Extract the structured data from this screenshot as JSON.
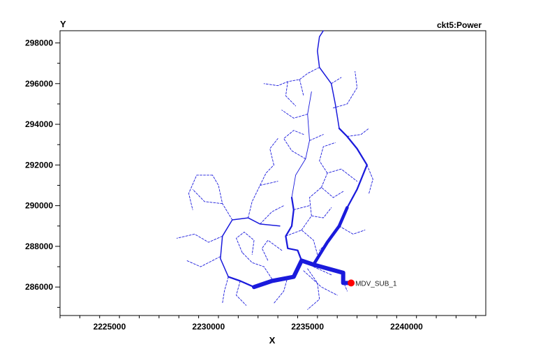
{
  "chart_data": {
    "type": "network-map",
    "title": "ckt5:Power",
    "xlabel": "X",
    "ylabel": "Y",
    "xlim": [
      2222500,
      2244000
    ],
    "ylim": [
      284600,
      298600
    ],
    "x_ticks": [
      {
        "value": 2225000,
        "label": "2225000"
      },
      {
        "value": 2230000,
        "label": "2230000"
      },
      {
        "value": 2235000,
        "label": "2235000"
      },
      {
        "value": 2240000,
        "label": "2240000"
      }
    ],
    "y_ticks": [
      {
        "value": 286000,
        "label": "286000"
      },
      {
        "value": 288000,
        "label": "288000"
      },
      {
        "value": 290000,
        "label": "290000"
      },
      {
        "value": 292000,
        "label": "292000"
      },
      {
        "value": 294000,
        "label": "294000"
      },
      {
        "value": 296000,
        "label": "296000"
      },
      {
        "value": 298000,
        "label": "298000"
      }
    ],
    "line_color": "#1a1adc",
    "substation": {
      "label": "MDV_SUB_1",
      "x": 2237200,
      "y": 286200,
      "color": "#ff0000"
    },
    "feeders": [
      {
        "weight": 8,
        "style": "solid",
        "points": [
          [
            2237200,
            286200
          ],
          [
            2236800,
            286200
          ],
          [
            2236800,
            286700
          ],
          [
            2235300,
            287100
          ],
          [
            2234700,
            287300
          ],
          [
            2234300,
            286500
          ],
          [
            2233200,
            286300
          ],
          [
            2232300,
            286000
          ]
        ]
      },
      {
        "weight": 6,
        "style": "solid",
        "points": [
          [
            2235300,
            287100
          ],
          [
            2236000,
            288200
          ],
          [
            2236600,
            289000
          ],
          [
            2237000,
            289900
          ]
        ]
      },
      {
        "weight": 3,
        "style": "solid",
        "points": [
          [
            2237000,
            289900
          ],
          [
            2237500,
            290800
          ],
          [
            2238000,
            292000
          ],
          [
            2237500,
            292800
          ],
          [
            2237000,
            293400
          ],
          [
            2236600,
            293800
          ]
        ]
      },
      {
        "weight": 2,
        "style": "solid",
        "points": [
          [
            2236600,
            293800
          ],
          [
            2236400,
            295000
          ],
          [
            2236200,
            296000
          ],
          [
            2235600,
            296800
          ],
          [
            2235500,
            297600
          ],
          [
            2235600,
            298300
          ],
          [
            2235800,
            298600
          ]
        ]
      },
      {
        "weight": 3,
        "style": "solid",
        "points": [
          [
            2234700,
            287300
          ],
          [
            2234500,
            287800
          ],
          [
            2234000,
            287900
          ],
          [
            2233900,
            288500
          ],
          [
            2234200,
            289000
          ],
          [
            2234300,
            289800
          ],
          [
            2234200,
            290400
          ]
        ]
      },
      {
        "weight": 3,
        "style": "solid",
        "points": [
          [
            2232300,
            286000
          ],
          [
            2231600,
            286300
          ],
          [
            2231000,
            286500
          ]
        ]
      },
      {
        "weight": 2,
        "style": "solid",
        "points": [
          [
            2231000,
            286500
          ],
          [
            2230600,
            287400
          ],
          [
            2230700,
            288500
          ],
          [
            2231200,
            289300
          ],
          [
            2232000,
            289400
          ],
          [
            2232600,
            289100
          ],
          [
            2233600,
            289000
          ]
        ]
      },
      {
        "weight": 1,
        "style": "solid",
        "points": [
          [
            2234200,
            290400
          ],
          [
            2234400,
            291500
          ],
          [
            2234900,
            292300
          ],
          [
            2235100,
            293200
          ],
          [
            2235000,
            294500
          ],
          [
            2235200,
            295600
          ]
        ]
      },
      {
        "weight": 1,
        "style": "dashed",
        "points": [
          [
            2234800,
            286800
          ],
          [
            2235700,
            286000
          ],
          [
            2236500,
            285600
          ]
        ]
      },
      {
        "weight": 1,
        "style": "dashed",
        "points": [
          [
            2235000,
            286900
          ],
          [
            2235500,
            286200
          ],
          [
            2235600,
            285400
          ],
          [
            2235000,
            284900
          ]
        ]
      },
      {
        "weight": 1,
        "style": "dashed",
        "points": [
          [
            2234000,
            286500
          ],
          [
            2233800,
            285800
          ],
          [
            2233300,
            285200
          ]
        ]
      },
      {
        "weight": 1,
        "style": "dashed",
        "points": [
          [
            2233200,
            286400
          ],
          [
            2232800,
            287000
          ],
          [
            2232200,
            287200
          ],
          [
            2231700,
            287700
          ]
        ]
      },
      {
        "weight": 1,
        "style": "dashed",
        "points": [
          [
            2231700,
            287700
          ],
          [
            2231400,
            288400
          ],
          [
            2231800,
            288700
          ],
          [
            2232300,
            288300
          ],
          [
            2232200,
            287600
          ]
        ]
      },
      {
        "weight": 1,
        "style": "dashed",
        "points": [
          [
            2230700,
            288500
          ],
          [
            2230000,
            288200
          ],
          [
            2229300,
            288600
          ],
          [
            2228400,
            288400
          ]
        ]
      },
      {
        "weight": 1,
        "style": "dashed",
        "points": [
          [
            2230600,
            287500
          ],
          [
            2229600,
            287000
          ],
          [
            2228900,
            287300
          ]
        ]
      },
      {
        "weight": 1,
        "style": "dashed",
        "points": [
          [
            2231000,
            286500
          ],
          [
            2230800,
            285800
          ],
          [
            2230700,
            285200
          ]
        ]
      },
      {
        "weight": 1,
        "style": "dashed",
        "points": [
          [
            2231600,
            286300
          ],
          [
            2231400,
            285600
          ],
          [
            2231900,
            285100
          ]
        ]
      },
      {
        "weight": 1,
        "style": "dashed",
        "points": [
          [
            2231200,
            289300
          ],
          [
            2230700,
            290100
          ],
          [
            2230500,
            291000
          ],
          [
            2230200,
            291500
          ]
        ]
      },
      {
        "weight": 1,
        "style": "dashed",
        "points": [
          [
            2230700,
            290100
          ],
          [
            2229800,
            290200
          ],
          [
            2229200,
            290800
          ]
        ]
      },
      {
        "weight": 1,
        "style": "dashed",
        "points": [
          [
            2230200,
            291500
          ],
          [
            2229400,
            291500
          ],
          [
            2229000,
            290600
          ],
          [
            2229200,
            289800
          ]
        ]
      },
      {
        "weight": 1,
        "style": "dashed",
        "points": [
          [
            2232000,
            289400
          ],
          [
            2232200,
            290200
          ],
          [
            2232600,
            291000
          ],
          [
            2232900,
            291600
          ],
          [
            2233300,
            292000
          ]
        ]
      },
      {
        "weight": 1,
        "style": "dashed",
        "points": [
          [
            2232600,
            291000
          ],
          [
            2233500,
            291200
          ]
        ]
      },
      {
        "weight": 1,
        "style": "dashed",
        "points": [
          [
            2232600,
            289100
          ],
          [
            2233200,
            289700
          ],
          [
            2233800,
            290000
          ]
        ]
      },
      {
        "weight": 1,
        "style": "dashed",
        "points": [
          [
            2233900,
            288500
          ],
          [
            2234700,
            288800
          ],
          [
            2235300,
            288300
          ],
          [
            2235500,
            287600
          ]
        ]
      },
      {
        "weight": 1,
        "style": "dashed",
        "points": [
          [
            2234700,
            288800
          ],
          [
            2235200,
            289500
          ],
          [
            2235800,
            289400
          ],
          [
            2236200,
            289900
          ]
        ]
      },
      {
        "weight": 1,
        "style": "dashed",
        "points": [
          [
            2235200,
            289500
          ],
          [
            2235100,
            290400
          ],
          [
            2235700,
            290900
          ],
          [
            2236300,
            290400
          ],
          [
            2236800,
            290700
          ]
        ]
      },
      {
        "weight": 1,
        "style": "dashed",
        "points": [
          [
            2236600,
            289000
          ],
          [
            2237300,
            288600
          ],
          [
            2237900,
            288800
          ]
        ]
      },
      {
        "weight": 1,
        "style": "dashed",
        "points": [
          [
            2236000,
            288200
          ],
          [
            2235600,
            287800
          ]
        ]
      },
      {
        "weight": 1,
        "style": "dashed",
        "points": [
          [
            2234300,
            289800
          ],
          [
            2235100,
            290000
          ]
        ]
      },
      {
        "weight": 1,
        "style": "dashed",
        "points": [
          [
            2235700,
            290900
          ],
          [
            2236000,
            291600
          ],
          [
            2236700,
            291800
          ],
          [
            2237500,
            291200
          ]
        ]
      },
      {
        "weight": 1,
        "style": "dashed",
        "points": [
          [
            2236000,
            291600
          ],
          [
            2235600,
            292200
          ],
          [
            2235800,
            292900
          ],
          [
            2236400,
            293100
          ]
        ]
      },
      {
        "weight": 1,
        "style": "dashed",
        "points": [
          [
            2234900,
            292300
          ],
          [
            2234200,
            292700
          ],
          [
            2233800,
            293300
          ],
          [
            2234300,
            293700
          ],
          [
            2234800,
            293500
          ]
        ]
      },
      {
        "weight": 1,
        "style": "dashed",
        "points": [
          [
            2235100,
            293200
          ],
          [
            2235800,
            293500
          ]
        ]
      },
      {
        "weight": 1,
        "style": "dashed",
        "points": [
          [
            2237000,
            293400
          ],
          [
            2237700,
            293500
          ],
          [
            2238100,
            293800
          ]
        ]
      },
      {
        "weight": 1,
        "style": "dashed",
        "points": [
          [
            2238000,
            292000
          ],
          [
            2238300,
            291300
          ],
          [
            2238100,
            290600
          ]
        ]
      },
      {
        "weight": 1,
        "style": "dashed",
        "points": [
          [
            2236300,
            294800
          ],
          [
            2237000,
            295000
          ],
          [
            2237500,
            295800
          ],
          [
            2237400,
            296600
          ]
        ]
      },
      {
        "weight": 1,
        "style": "dashed",
        "points": [
          [
            2236200,
            296000
          ],
          [
            2236700,
            296300
          ]
        ]
      },
      {
        "weight": 1,
        "style": "dashed",
        "points": [
          [
            2235600,
            296800
          ],
          [
            2235000,
            296500
          ],
          [
            2234600,
            296200
          ],
          [
            2234000,
            296100
          ],
          [
            2233500,
            295900
          ],
          [
            2232800,
            296000
          ]
        ]
      },
      {
        "weight": 1,
        "style": "dashed",
        "points": [
          [
            2234000,
            296100
          ],
          [
            2233900,
            295400
          ],
          [
            2234400,
            294900
          ]
        ]
      },
      {
        "weight": 1,
        "style": "dashed",
        "points": [
          [
            2235000,
            294500
          ],
          [
            2234300,
            294300
          ],
          [
            2233700,
            294700
          ]
        ]
      },
      {
        "weight": 1,
        "style": "dashed",
        "points": [
          [
            2234600,
            296200
          ],
          [
            2234800,
            295400
          ]
        ]
      },
      {
        "weight": 1,
        "style": "dashed",
        "points": [
          [
            2233300,
            292000
          ],
          [
            2233100,
            292800
          ],
          [
            2233500,
            293300
          ]
        ]
      },
      {
        "weight": 1,
        "style": "dashed",
        "points": [
          [
            2233700,
            287800
          ],
          [
            2233000,
            288300
          ],
          [
            2232700,
            287900
          ],
          [
            2233000,
            287300
          ]
        ]
      },
      {
        "weight": 1,
        "style": "dashed",
        "points": [
          [
            2235300,
            287000
          ],
          [
            2236200,
            286600
          ]
        ]
      },
      {
        "weight": 1,
        "style": "dashed",
        "points": [
          [
            2236800,
            286300
          ],
          [
            2237000,
            285800
          ]
        ]
      }
    ]
  }
}
